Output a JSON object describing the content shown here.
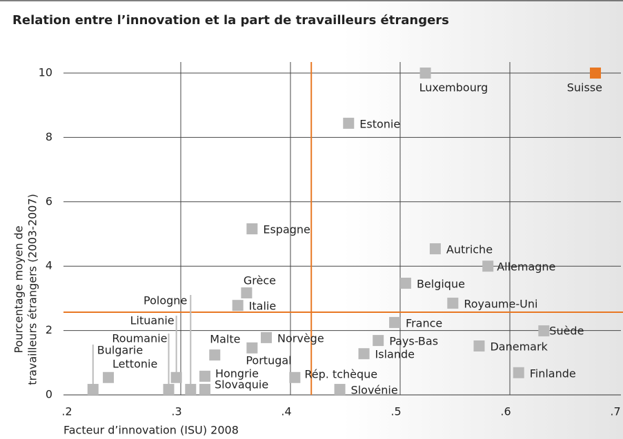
{
  "chart_data": {
    "type": "scatter",
    "title": "Relation entre l’innovation et la part de travailleurs étrangers",
    "x_label": "Facteur d’innovation (ISU) 2008",
    "y_label": [
      "Pourcentage moyen de",
      "travailleurs étrangers (2003-2007)"
    ],
    "xlim": [
      0.2,
      0.7
    ],
    "ylim": [
      0,
      10
    ],
    "xticks": [
      {
        "value": 0.2,
        "label": ".2"
      },
      {
        "value": 0.3,
        "label": ".3"
      },
      {
        "value": 0.4,
        "label": ".4"
      },
      {
        "value": 0.5,
        "label": ".5"
      },
      {
        "value": 0.6,
        "label": ".6"
      },
      {
        "value": 0.7,
        "label": ".7"
      }
    ],
    "yticks": [
      0,
      2,
      4,
      6,
      8,
      10
    ],
    "grid": true,
    "reference_lines": {
      "x": 0.419,
      "y": 2.57,
      "color": "#e87722"
    },
    "points": [
      {
        "label": "Luxembourg",
        "x": 0.523,
        "y": 10,
        "color": "#b8b8b8"
      },
      {
        "label": "Suisse",
        "x": 0.678,
        "y": 10,
        "color": "#e87722"
      },
      {
        "label": "Estonie",
        "x": 0.453,
        "y": 8.44,
        "color": "#b8b8b8"
      },
      {
        "label": "Espagne",
        "x": 0.365,
        "y": 5.16,
        "color": "#b8b8b8"
      },
      {
        "label": "Autriche",
        "x": 0.532,
        "y": 4.54,
        "color": "#b8b8b8"
      },
      {
        "label": "Allemagne",
        "x": 0.58,
        "y": 4.0,
        "color": "#b8b8b8"
      },
      {
        "label": "Belgique",
        "x": 0.505,
        "y": 3.47,
        "color": "#b8b8b8"
      },
      {
        "label": "Royaume-Uni",
        "x": 0.548,
        "y": 2.85,
        "color": "#b8b8b8"
      },
      {
        "label": "Grèce",
        "x": 0.36,
        "y": 3.17,
        "color": "#b8b8b8"
      },
      {
        "label": "Italie",
        "x": 0.352,
        "y": 2.78,
        "color": "#b8b8b8"
      },
      {
        "label": "France",
        "x": 0.495,
        "y": 2.25,
        "color": "#b8b8b8"
      },
      {
        "label": "Suède",
        "x": 0.631,
        "y": 1.99,
        "color": "#b8b8b8"
      },
      {
        "label": "Norvège",
        "x": 0.378,
        "y": 1.78,
        "color": "#b8b8b8"
      },
      {
        "label": "Malte",
        "x": 0.331,
        "y": 1.24,
        "color": "#b8b8b8"
      },
      {
        "label": "Portugal",
        "x": 0.365,
        "y": 1.46,
        "color": "#b8b8b8"
      },
      {
        "label": "Pays-Bas",
        "x": 0.48,
        "y": 1.69,
        "color": "#b8b8b8"
      },
      {
        "label": "Danemark",
        "x": 0.572,
        "y": 1.52,
        "color": "#b8b8b8"
      },
      {
        "label": "Islande",
        "x": 0.467,
        "y": 1.28,
        "color": "#b8b8b8"
      },
      {
        "label": "Finlande",
        "x": 0.608,
        "y": 0.69,
        "color": "#b8b8b8"
      },
      {
        "label": "Hongrie",
        "x": 0.322,
        "y": 0.58,
        "color": "#b8b8b8"
      },
      {
        "label": "Rép. tchèque",
        "x": 0.404,
        "y": 0.54,
        "color": "#b8b8b8"
      },
      {
        "label": "Slovénie",
        "x": 0.445,
        "y": 0.17,
        "color": "#b8b8b8"
      },
      {
        "label": "Slovaquie",
        "x": 0.322,
        "y": 0.17,
        "color": "#b8b8b8"
      },
      {
        "label": "Lettonie",
        "x": 0.234,
        "y": 0.54,
        "color": "#b8b8b8"
      },
      {
        "label": "Bulgarie",
        "x": 0.22,
        "y": 0.17,
        "color": "#b8b8b8"
      },
      {
        "label": "Roumanie",
        "x": 0.289,
        "y": 0.17,
        "color": "#b8b8b8"
      },
      {
        "label": "Lituanie",
        "x": 0.296,
        "y": 0.54,
        "color": "#b8b8b8"
      },
      {
        "label": "Pologne",
        "x": 0.309,
        "y": 0.17,
        "color": "#b8b8b8"
      }
    ]
  }
}
